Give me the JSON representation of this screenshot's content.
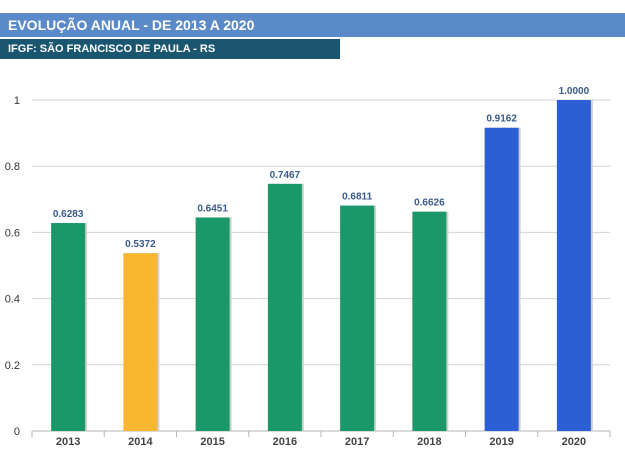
{
  "header": {
    "title": "EVOLUÇÃO ANUAL - DE 2013 A 2020",
    "subtitle": "IFGF: SÃO FRANCISCO DE PAULA - RS"
  },
  "colors": {
    "title_bg": "#5b8ac9",
    "subtitle_bg": "#1a5670",
    "green": "#1b9869",
    "yellow": "#f7b731",
    "blue": "#2d5fd4"
  },
  "chart_data": {
    "type": "bar",
    "categories": [
      "2013",
      "2014",
      "2015",
      "2016",
      "2017",
      "2018",
      "2019",
      "2020"
    ],
    "values": [
      0.6283,
      0.5372,
      0.6451,
      0.7467,
      0.6811,
      0.6626,
      0.9162,
      1.0
    ],
    "labels": [
      "0.6283",
      "0.5372",
      "0.6451",
      "0.7467",
      "0.6811",
      "0.6626",
      "0.9162",
      "1.0000"
    ],
    "bar_colors": [
      "#1b9869",
      "#f7b731",
      "#1b9869",
      "#1b9869",
      "#1b9869",
      "#1b9869",
      "#2d5fd4",
      "#2d5fd4"
    ],
    "yticks": [
      "0",
      "0.2",
      "0.4",
      "0.6",
      "0.8",
      "1"
    ],
    "ylim": [
      0,
      1
    ],
    "grid": true,
    "legend": "none"
  }
}
